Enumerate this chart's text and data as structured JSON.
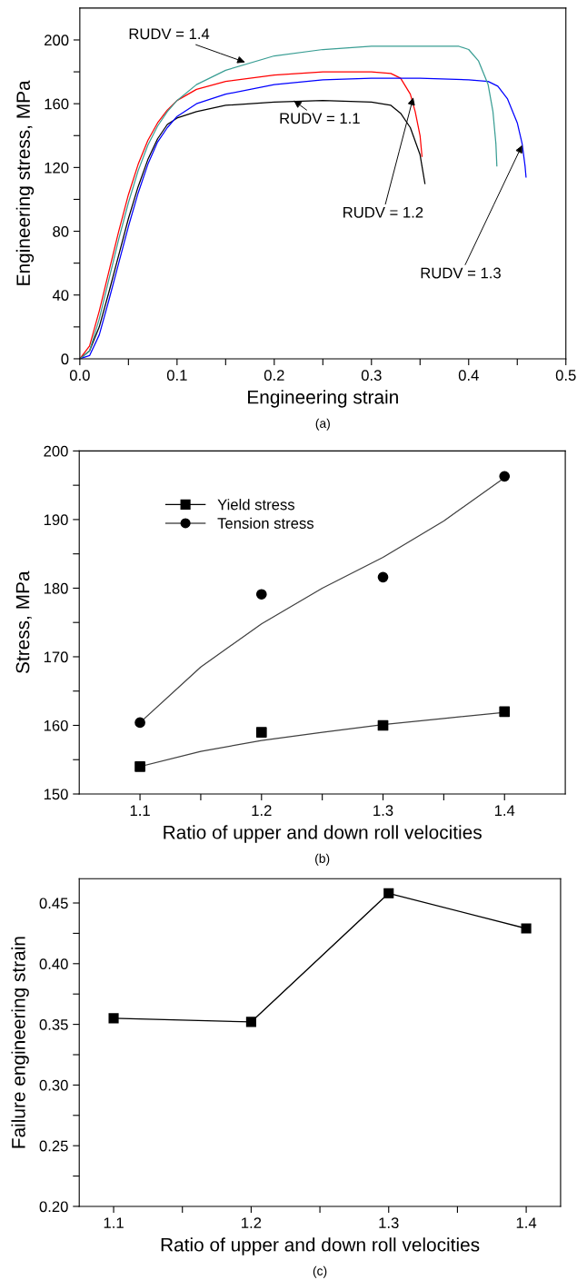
{
  "chart_data": [
    {
      "type": "line",
      "xlabel": "Engineering strain",
      "ylabel": "Engineering stress, MPa",
      "xlim": [
        0,
        0.5
      ],
      "xticks": [
        {
          "value": 0,
          "label": "0.0"
        },
        {
          "value": 0.05,
          "label": null
        },
        0.1,
        {
          "value": 0.15,
          "label": null
        },
        0.2,
        {
          "value": 0.25,
          "label": null
        },
        0.3,
        {
          "value": 0.35,
          "label": null
        },
        0.4,
        {
          "value": 0.45,
          "label": null
        },
        0.5
      ],
      "ylim": [
        0,
        220
      ],
      "yticks": [
        0,
        {
          "value": 20,
          "label": null
        },
        40,
        {
          "value": 60,
          "label": null
        },
        80,
        {
          "value": 100,
          "label": null
        },
        120,
        {
          "value": 140,
          "label": null
        },
        160,
        {
          "value": 180,
          "label": null
        },
        200
      ],
      "grid": false,
      "legend": false,
      "marker": "none",
      "line_style": "solid",
      "series": [
        {
          "color": "#000000",
          "x": [
            0,
            0.01,
            0.02,
            0.03,
            0.04,
            0.05,
            0.06,
            0.07,
            0.08,
            0.09,
            0.1,
            0.12,
            0.15,
            0.2,
            0.25,
            0.3,
            0.32,
            0.33,
            0.34,
            0.35,
            0.355
          ],
          "values": [
            0,
            5,
            20,
            42,
            65,
            88,
            108,
            125,
            138,
            147,
            151,
            155,
            159,
            161,
            162,
            161,
            159,
            154,
            145,
            128,
            110
          ]
        },
        {
          "color": "#ff0000",
          "x": [
            0,
            0.01,
            0.02,
            0.03,
            0.04,
            0.05,
            0.06,
            0.07,
            0.08,
            0.09,
            0.1,
            0.12,
            0.15,
            0.2,
            0.25,
            0.3,
            0.32,
            0.33,
            0.34,
            0.345,
            0.35,
            0.352
          ],
          "values": [
            0,
            8,
            30,
            55,
            80,
            103,
            122,
            137,
            148,
            156,
            162,
            169,
            174,
            178,
            180,
            180,
            179,
            176,
            166,
            155,
            140,
            127
          ]
        },
        {
          "color": "#0000ff",
          "x": [
            0,
            0.01,
            0.02,
            0.03,
            0.04,
            0.05,
            0.06,
            0.07,
            0.08,
            0.09,
            0.1,
            0.12,
            0.15,
            0.2,
            0.25,
            0.3,
            0.35,
            0.4,
            0.42,
            0.43,
            0.44,
            0.45,
            0.455,
            0.458,
            0.459
          ],
          "values": [
            0,
            2,
            15,
            37,
            60,
            83,
            104,
            122,
            136,
            145,
            152,
            160,
            166,
            172,
            175,
            176,
            176,
            175,
            174,
            171,
            163,
            148,
            135,
            121,
            114
          ]
        },
        {
          "color": "#3a9e94",
          "x": [
            0,
            0.01,
            0.02,
            0.03,
            0.04,
            0.05,
            0.06,
            0.07,
            0.08,
            0.09,
            0.1,
            0.12,
            0.15,
            0.2,
            0.25,
            0.3,
            0.35,
            0.39,
            0.4,
            0.41,
            0.42,
            0.425,
            0.428,
            0.429
          ],
          "values": [
            0,
            5,
            25,
            50,
            75,
            98,
            118,
            134,
            146,
            155,
            162,
            172,
            181,
            190,
            194,
            196,
            196,
            196,
            194,
            187,
            172,
            155,
            135,
            121
          ]
        }
      ],
      "annotations": [
        {
          "text": "RUDV = 1.4",
          "x": 0.17,
          "y": 186
        },
        {
          "text": "RUDV = 1.1",
          "x": 0.22,
          "y": 162
        },
        {
          "text": "RUDV = 1.2",
          "x": 0.343,
          "y": 164
        },
        {
          "text": "RUDV = 1.3",
          "x": 0.455,
          "y": 134
        },
        "(a)"
      ]
    },
    {
      "type": "scatter",
      "xlabel": "Ratio of upper and down roll velocities",
      "ylabel": "Stress, MPa",
      "xlim": [
        1.05,
        1.45
      ],
      "xticks": [
        1.1,
        {
          "value": 1.15,
          "label": null
        },
        1.2,
        {
          "value": 1.25,
          "label": null
        },
        1.3,
        {
          "value": 1.35,
          "label": null
        },
        1.4
      ],
      "ylim": [
        150,
        200
      ],
      "yticks": [
        150,
        {
          "value": 155,
          "label": null
        },
        160,
        {
          "value": 165,
          "label": null
        },
        170,
        {
          "value": 175,
          "label": null
        },
        180,
        {
          "value": 185,
          "label": null
        },
        190,
        {
          "value": 195,
          "label": null
        },
        200
      ],
      "grid": false,
      "legend": "top left",
      "series": [
        {
          "name": "Yield stress",
          "color": "#000000",
          "marker": "square",
          "x": [
            1.1,
            1.2,
            1.3,
            1.4
          ],
          "values": [
            154,
            159,
            160,
            162
          ]
        },
        {
          "name": "Tension stress",
          "color": "#000000",
          "marker": "circle",
          "x": [
            1.1,
            1.2,
            1.3,
            1.4
          ],
          "values": [
            160.4,
            179.1,
            181.6,
            196.3
          ]
        },
        {
          "type": "line",
          "color": "#404040",
          "marker": "none",
          "x": [
            1.1,
            1.15,
            1.2,
            1.25,
            1.3,
            1.35,
            1.4
          ],
          "values": [
            154,
            156.2,
            157.8,
            159,
            160.1,
            161,
            161.9
          ]
        },
        {
          "type": "line",
          "color": "#404040",
          "marker": "none",
          "x": [
            1.1,
            1.15,
            1.2,
            1.25,
            1.3,
            1.35,
            1.4
          ],
          "values": [
            160.4,
            168.5,
            174.8,
            180,
            184.5,
            189.8,
            196.1
          ]
        }
      ],
      "annotations": [
        "(b)"
      ]
    },
    {
      "type": "line",
      "xlabel": "Ratio of upper and down roll velocities",
      "ylabel": "Failure engineering strain",
      "xlim": [
        1.075,
        1.425
      ],
      "xticks": [
        1.1,
        {
          "value": 1.15,
          "label": null
        },
        1.2,
        {
          "value": 1.25,
          "label": null
        },
        1.3,
        {
          "value": 1.35,
          "label": null
        },
        1.4
      ],
      "ylim": [
        0.2,
        0.47
      ],
      "yticks": [
        {
          "value": 0.2,
          "label": "0.20"
        },
        {
          "value": 0.225,
          "label": null
        },
        0.25,
        {
          "value": 0.275,
          "label": null
        },
        {
          "value": 0.3,
          "label": "0.30"
        },
        {
          "value": 0.325,
          "label": null
        },
        0.35,
        {
          "value": 0.375,
          "label": null
        },
        {
          "value": 0.4,
          "label": "0.40"
        },
        {
          "value": 0.425,
          "label": null
        },
        0.45
      ],
      "grid": false,
      "legend": false,
      "marker": "square",
      "line_style": "solid",
      "x": [
        1.1,
        1.2,
        1.3,
        1.4
      ],
      "series": [
        {
          "color": "#000000",
          "values": [
            0.355,
            0.352,
            0.458,
            0.429
          ]
        }
      ],
      "annotations": [
        "(c)"
      ]
    }
  ]
}
